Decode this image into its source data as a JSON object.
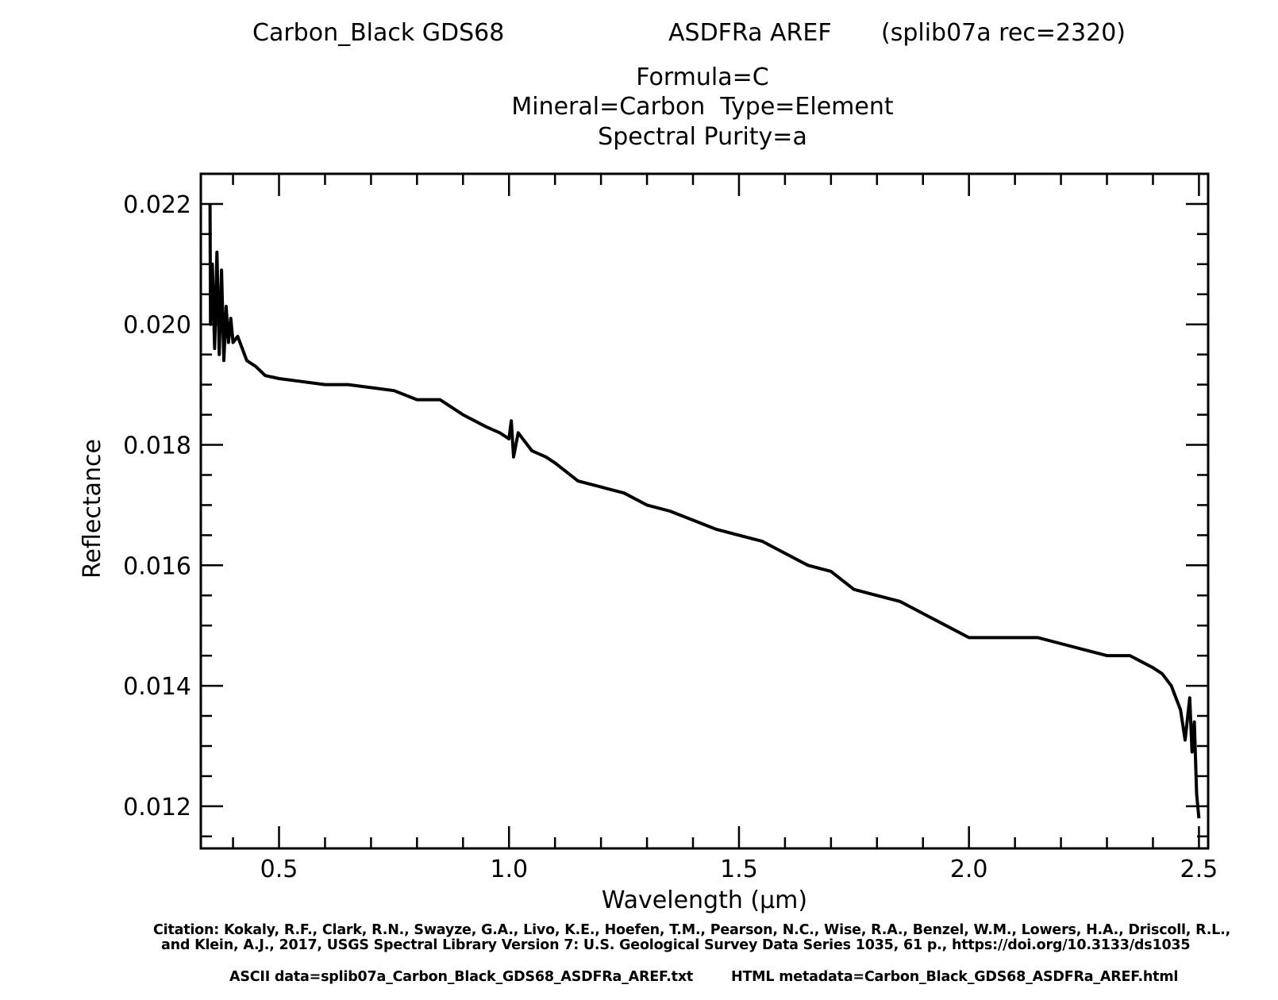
{
  "header": {
    "sample": "Carbon_Black GDS68",
    "instrument": "ASDFRa AREF",
    "record": "(splib07a rec=2320)",
    "formula": "Formula=C",
    "mineral_type": "Mineral=Carbon  Type=Element",
    "purity": "Spectral Purity=a"
  },
  "footer": {
    "citation_line1": "Citation: Kokaly, R.F., Clark, R.N., Swayze, G.A., Livo, K.E., Hoefen, T.M., Pearson, N.C., Wise, R.A., Benzel, W.M., Lowers, H.A., Driscoll, R.L.,",
    "citation_line2": "and Klein, A.J., 2017, USGS Spectral Library Version 7: U.S. Geological Survey Data Series 1035, 61 p., https://doi.org/10.3133/ds1035",
    "ascii_data": "ASCII data=splib07a_Carbon_Black_GDS68_ASDFRa_AREF.txt",
    "html_metadata": "HTML metadata=Carbon_Black_GDS68_ASDFRa_AREF.html"
  },
  "chart_data": {
    "type": "line",
    "xlabel": "Wavelength (μm)",
    "ylabel": "Reflectance",
    "xlim": [
      0.33,
      2.52
    ],
    "ylim": [
      0.0113,
      0.0225
    ],
    "xticks": [
      0.5,
      1.0,
      1.5,
      2.0,
      2.5
    ],
    "xtick_labels": [
      "0.5",
      "1.0",
      "1.5",
      "2.0",
      "2.5"
    ],
    "yticks": [
      0.012,
      0.014,
      0.016,
      0.018,
      0.02,
      0.022
    ],
    "ytick_labels": [
      "0.012",
      "0.014",
      "0.016",
      "0.018",
      "0.020",
      "0.022"
    ],
    "line_color": "#000000",
    "series": [
      {
        "x": [
          0.35,
          0.351,
          0.355,
          0.36,
          0.365,
          0.37,
          0.375,
          0.38,
          0.385,
          0.39,
          0.395,
          0.4,
          0.41,
          0.42,
          0.43,
          0.45,
          0.47,
          0.5,
          0.55,
          0.6,
          0.65,
          0.7,
          0.75,
          0.8,
          0.85,
          0.9,
          0.95,
          0.98,
          1.0,
          1.005,
          1.01,
          1.02,
          1.05,
          1.08,
          1.1,
          1.15,
          1.2,
          1.25,
          1.3,
          1.35,
          1.4,
          1.45,
          1.5,
          1.55,
          1.6,
          1.65,
          1.7,
          1.75,
          1.8,
          1.85,
          1.9,
          1.95,
          2.0,
          2.05,
          2.1,
          2.15,
          2.2,
          2.25,
          2.3,
          2.35,
          2.4,
          2.42,
          2.44,
          2.46,
          2.47,
          2.48,
          2.485,
          2.49,
          2.495,
          2.5
        ],
        "y": [
          0.022,
          0.02,
          0.021,
          0.0196,
          0.0212,
          0.0195,
          0.0209,
          0.0194,
          0.0203,
          0.0197,
          0.0201,
          0.0197,
          0.0198,
          0.0196,
          0.0194,
          0.0193,
          0.01915,
          0.0191,
          0.01905,
          0.019,
          0.019,
          0.01895,
          0.0189,
          0.01875,
          0.01875,
          0.0185,
          0.0183,
          0.0182,
          0.0181,
          0.0184,
          0.0178,
          0.0182,
          0.0179,
          0.0178,
          0.0177,
          0.0174,
          0.0173,
          0.0172,
          0.017,
          0.0169,
          0.01675,
          0.0166,
          0.0165,
          0.0164,
          0.0162,
          0.016,
          0.0159,
          0.0156,
          0.0155,
          0.0154,
          0.0152,
          0.015,
          0.0148,
          0.0148,
          0.0148,
          0.0148,
          0.0147,
          0.0146,
          0.0145,
          0.0145,
          0.0143,
          0.0142,
          0.014,
          0.0136,
          0.0131,
          0.0138,
          0.0129,
          0.0134,
          0.0122,
          0.0118
        ]
      }
    ]
  }
}
